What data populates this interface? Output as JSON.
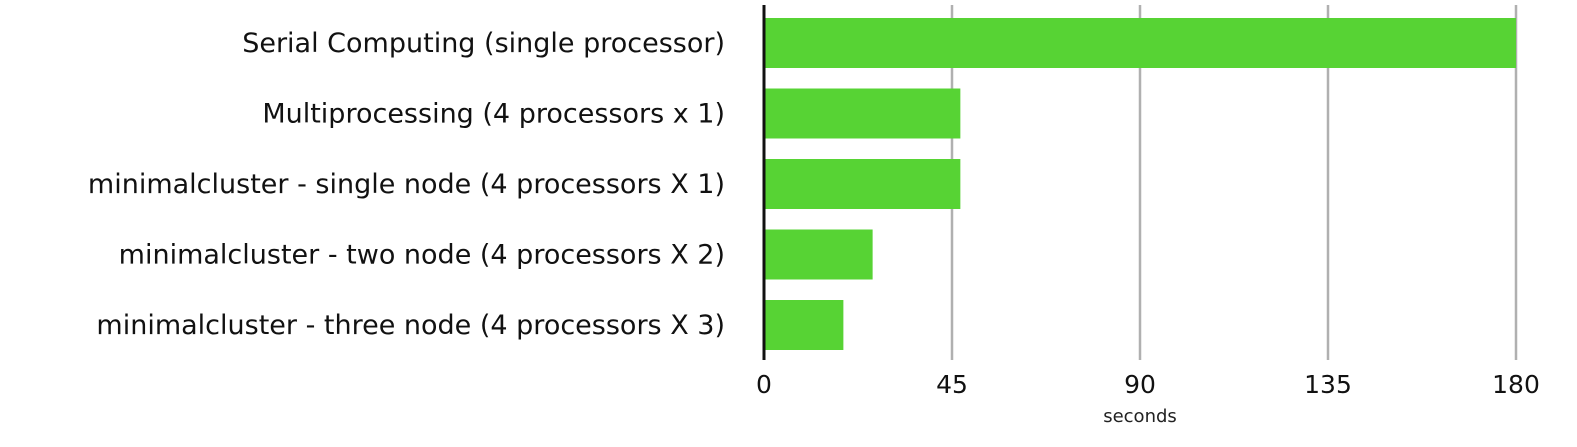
{
  "chart_data": {
    "type": "bar",
    "orientation": "horizontal",
    "categories": [
      "Serial Computing (single processor)",
      "Multiprocessing (4 processors x 1)",
      "minimalcluster - single node (4 processors X 1)",
      "minimalcluster - two node (4 processors X 2)",
      "minimalcluster - three node (4 processors X 3)"
    ],
    "values": [
      180,
      47,
      47,
      26,
      19
    ],
    "title": "",
    "xlabel": "seconds",
    "ylabel": "",
    "xlim": [
      0,
      180
    ],
    "xticks": [
      0,
      45,
      90,
      135,
      180
    ],
    "grid": "vertical",
    "legend": "none",
    "colors": {
      "bar": "#57d334",
      "grid": "#b0b0b0",
      "axis": "#111111"
    }
  }
}
